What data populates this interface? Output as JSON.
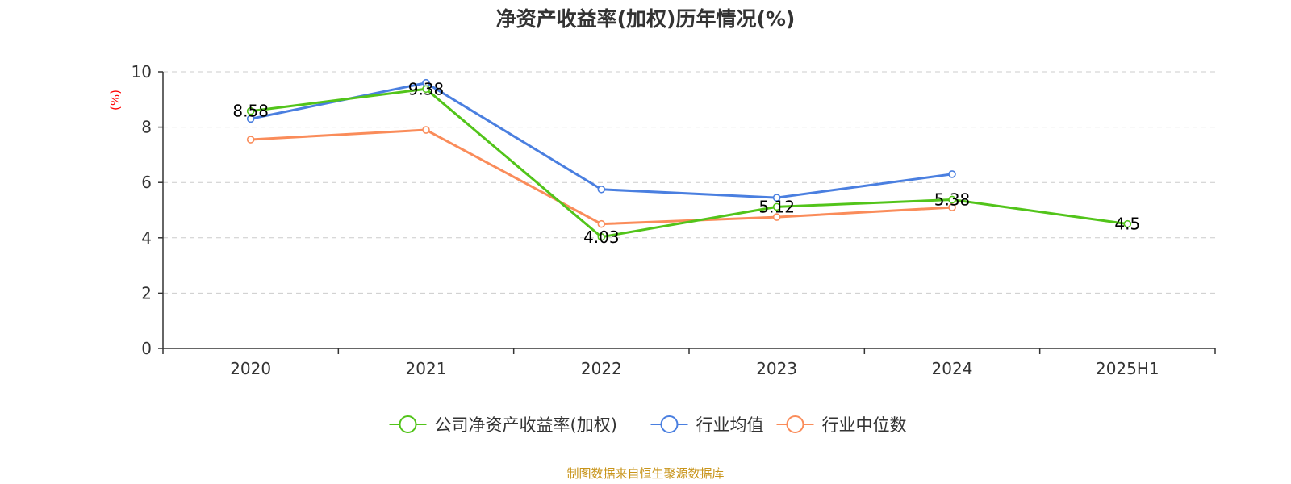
{
  "chart_data": {
    "type": "line",
    "title": "净资产收益率(加权)历年情况(%)",
    "ylabel": "(%)",
    "xlabel": "",
    "categories": [
      "2020",
      "2021",
      "2022",
      "2023",
      "2024",
      "2025H1"
    ],
    "ylim": [
      0,
      10
    ],
    "yticks": [
      0,
      2,
      4,
      6,
      8,
      10
    ],
    "grid": true,
    "legend_position": "bottom",
    "series": [
      {
        "name": "公司净资产收益率(加权)",
        "color": "#52c41a",
        "values": [
          8.58,
          9.38,
          4.03,
          5.12,
          5.38,
          4.5
        ],
        "labels": [
          "8.58",
          "9.38",
          "4.03",
          "5.12",
          "5.38",
          "4.5"
        ]
      },
      {
        "name": "行业均值",
        "color": "#4a7fe0",
        "values": [
          8.3,
          9.6,
          5.75,
          5.45,
          6.3,
          null
        ]
      },
      {
        "name": "行业中位数",
        "color": "#fa8c5a",
        "values": [
          7.55,
          7.9,
          4.5,
          4.75,
          5.1,
          null
        ]
      }
    ]
  },
  "source_text": "制图数据来自恒生聚源数据库"
}
